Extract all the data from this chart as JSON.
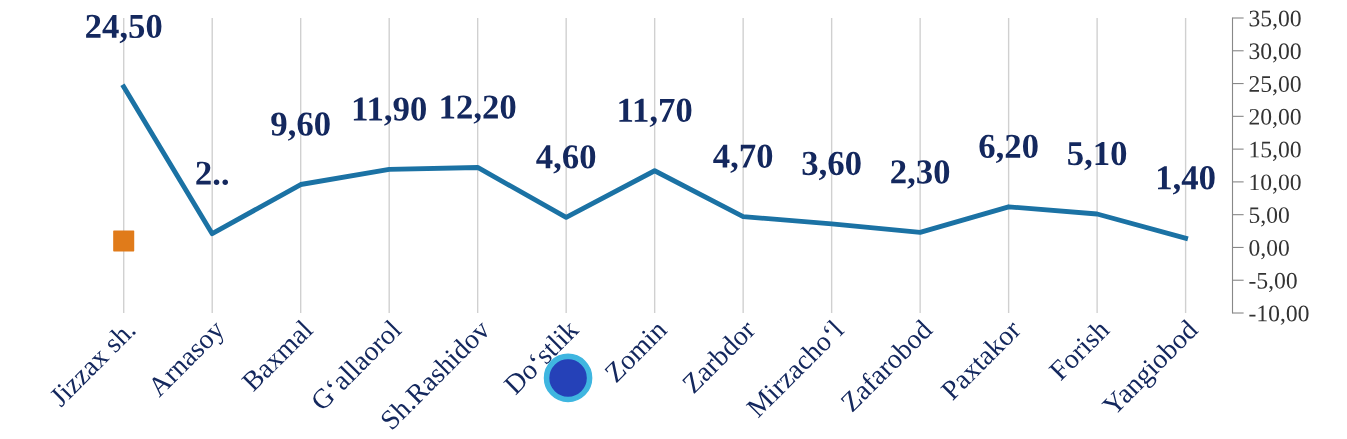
{
  "chart_data": {
    "type": "line",
    "categories": [
      "Jizzax sh.",
      "Arnasoy",
      "Baxmal",
      "G‘allaorol",
      "Sh.Rashidov",
      "Do‘stlik",
      "Zomin",
      "Zarbdor",
      "Mirzacho‘l",
      "Zafarobod",
      "Paxtakor",
      "Forish",
      "Yangiobod"
    ],
    "series": [
      {
        "color": "#1b72a4",
        "values": [
          24.5,
          2.1,
          9.6,
          11.9,
          12.2,
          4.6,
          11.7,
          4.7,
          3.6,
          2.3,
          6.2,
          5.1,
          1.4
        ],
        "value_labels": [
          "24,50",
          "2..",
          "9,60",
          "11,90",
          "12,20",
          "4,60",
          "11,70",
          "4,70",
          "3,60",
          "2,30",
          "6,20",
          "5,10",
          "1,40"
        ]
      },
      {
        "type": "scatter",
        "color": "#e07b1a",
        "marker": "square",
        "values": [
          1.0,
          null,
          null,
          null,
          null,
          null,
          null,
          null,
          null,
          null,
          null,
          null,
          null
        ]
      }
    ],
    "ylim": [
      -10,
      35
    ],
    "yticks": [
      {
        "value": -10,
        "label": "-10,00"
      },
      {
        "value": -5,
        "label": "-5,00"
      },
      {
        "value": 0,
        "label": "0,00"
      },
      {
        "value": 5,
        "label": "5,00"
      },
      {
        "value": 10,
        "label": "10,00"
      },
      {
        "value": 15,
        "label": "15,00"
      },
      {
        "value": 20,
        "label": "20,00"
      },
      {
        "value": 25,
        "label": "25,00"
      },
      {
        "value": 30,
        "label": "30,00"
      },
      {
        "value": 35,
        "label": "35,00"
      }
    ],
    "grid": "x",
    "legend": false
  }
}
